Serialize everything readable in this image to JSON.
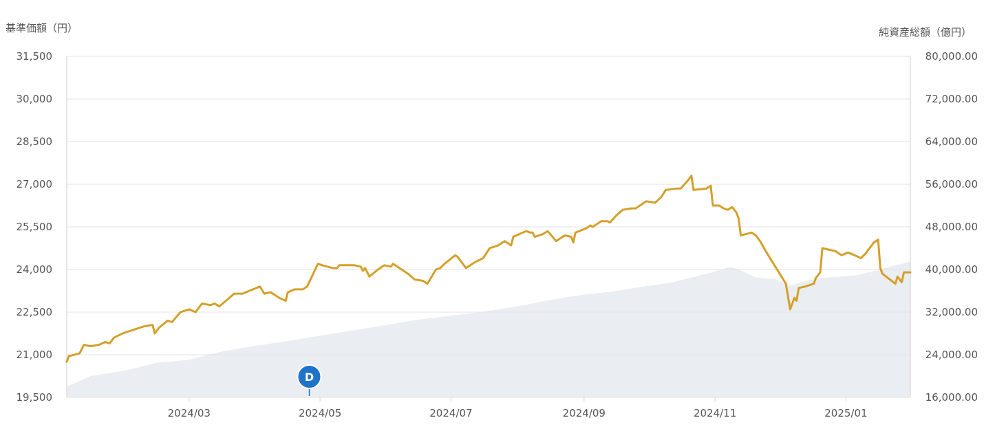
{
  "chart_data": {
    "type": "line",
    "left_axis_title": "基準価額（円）",
    "right_axis_title": "純資産総額（億円）",
    "left_ticks": [
      "19,500",
      "21,000",
      "22,500",
      "24,000",
      "25,500",
      "27,000",
      "28,500",
      "30,000",
      "31,500"
    ],
    "right_ticks": [
      "16,000.00",
      "24,000.00",
      "32,000.00",
      "40,000.00",
      "48,000.00",
      "56,000.00",
      "64,000.00",
      "72,000.00",
      "80,000.00"
    ],
    "x_ticks": [
      "2024/03",
      "2024/05",
      "2024/07",
      "2024/09",
      "2024/11",
      "2025/01"
    ],
    "left_range": [
      19500,
      31500
    ],
    "right_range": [
      16000,
      80000
    ],
    "x_range": [
      "2024-01-04",
      "2025-01-31"
    ],
    "marker": {
      "label": "D",
      "date": "2024-04-26"
    },
    "colors": {
      "price_line": "#d4a02a",
      "assets_area": "#eaedf2",
      "grid": "#e3e3e3",
      "marker": "#1f73c9",
      "axis_text": "#555555"
    },
    "series": [
      {
        "type": "line",
        "axis": "left",
        "points": [
          [
            "2024-01-04",
            20750
          ],
          [
            "2024-01-05",
            20950
          ],
          [
            "2024-01-10",
            21050
          ],
          [
            "2024-01-12",
            21350
          ],
          [
            "2024-01-15",
            21300
          ],
          [
            "2024-01-19",
            21350
          ],
          [
            "2024-01-22",
            21450
          ],
          [
            "2024-01-24",
            21400
          ],
          [
            "2024-01-26",
            21600
          ],
          [
            "2024-01-30",
            21750
          ],
          [
            "2024-02-05",
            21900
          ],
          [
            "2024-02-09",
            22000
          ],
          [
            "2024-02-13",
            22050
          ],
          [
            "2024-02-14",
            21750
          ],
          [
            "2024-02-16",
            21950
          ],
          [
            "2024-02-20",
            22200
          ],
          [
            "2024-02-22",
            22150
          ],
          [
            "2024-02-26",
            22500
          ],
          [
            "2024-03-01",
            22600
          ],
          [
            "2024-03-04",
            22500
          ],
          [
            "2024-03-07",
            22800
          ],
          [
            "2024-03-11",
            22750
          ],
          [
            "2024-03-13",
            22800
          ],
          [
            "2024-03-15",
            22700
          ],
          [
            "2024-03-19",
            22950
          ],
          [
            "2024-03-22",
            23150
          ],
          [
            "2024-03-26",
            23150
          ],
          [
            "2024-03-29",
            23250
          ],
          [
            "2024-04-03",
            23400
          ],
          [
            "2024-04-05",
            23150
          ],
          [
            "2024-04-08",
            23200
          ],
          [
            "2024-04-12",
            23000
          ],
          [
            "2024-04-15",
            22900
          ],
          [
            "2024-04-16",
            23200
          ],
          [
            "2024-04-19",
            23300
          ],
          [
            "2024-04-23",
            23300
          ],
          [
            "2024-04-25",
            23400
          ],
          [
            "2024-04-30",
            24200
          ],
          [
            "2024-05-02",
            24150
          ],
          [
            "2024-05-07",
            24050
          ],
          [
            "2024-05-09",
            24050
          ],
          [
            "2024-05-10",
            24150
          ],
          [
            "2024-05-14",
            24150
          ],
          [
            "2024-05-17",
            24150
          ],
          [
            "2024-05-20",
            24100
          ],
          [
            "2024-05-21",
            23950
          ],
          [
            "2024-05-22",
            24050
          ],
          [
            "2024-05-24",
            23750
          ],
          [
            "2024-05-28",
            24000
          ],
          [
            "2024-05-31",
            24150
          ],
          [
            "2024-06-03",
            24100
          ],
          [
            "2024-06-04",
            24200
          ],
          [
            "2024-06-07",
            24050
          ],
          [
            "2024-06-11",
            23850
          ],
          [
            "2024-06-14",
            23650
          ],
          [
            "2024-06-18",
            23600
          ],
          [
            "2024-06-20",
            23500
          ],
          [
            "2024-06-24",
            24000
          ],
          [
            "2024-06-26",
            24050
          ],
          [
            "2024-06-28",
            24200
          ],
          [
            "2024-07-03",
            24500
          ],
          [
            "2024-07-04",
            24450
          ],
          [
            "2024-07-08",
            24050
          ],
          [
            "2024-07-12",
            24250
          ],
          [
            "2024-07-16",
            24400
          ],
          [
            "2024-07-19",
            24750
          ],
          [
            "2024-07-23",
            24850
          ],
          [
            "2024-07-25",
            24950
          ],
          [
            "2024-07-26",
            25000
          ],
          [
            "2024-07-29",
            24850
          ],
          [
            "2024-07-30",
            25150
          ],
          [
            "2024-08-02",
            25250
          ],
          [
            "2024-08-05",
            25350
          ],
          [
            "2024-08-07",
            25300
          ],
          [
            "2024-08-08",
            25300
          ],
          [
            "2024-08-09",
            25150
          ],
          [
            "2024-08-13",
            25250
          ],
          [
            "2024-08-15",
            25350
          ],
          [
            "2024-08-19",
            25000
          ],
          [
            "2024-08-21",
            25100
          ],
          [
            "2024-08-23",
            25200
          ],
          [
            "2024-08-26",
            25150
          ],
          [
            "2024-08-27",
            24950
          ],
          [
            "2024-08-28",
            25300
          ],
          [
            "2024-09-02",
            25450
          ],
          [
            "2024-09-04",
            25550
          ],
          [
            "2024-09-05",
            25500
          ],
          [
            "2024-09-09",
            25700
          ],
          [
            "2024-09-12",
            25700
          ],
          [
            "2024-09-13",
            25650
          ],
          [
            "2024-09-16",
            25900
          ],
          [
            "2024-09-19",
            26100
          ],
          [
            "2024-09-23",
            26150
          ],
          [
            "2024-09-25",
            26150
          ],
          [
            "2024-09-27",
            26250
          ],
          [
            "2024-09-30",
            26400
          ],
          [
            "2024-10-04",
            26350
          ],
          [
            "2024-10-07",
            26550
          ],
          [
            "2024-10-09",
            26800
          ],
          [
            "2024-10-14",
            26850
          ],
          [
            "2024-10-16",
            26850
          ],
          [
            "2024-10-19",
            27100
          ],
          [
            "2024-10-21",
            27300
          ],
          [
            "2024-10-22",
            26800
          ],
          [
            "2024-10-28",
            26850
          ],
          [
            "2024-10-30",
            26950
          ],
          [
            "2024-10-31",
            26250
          ],
          [
            "2024-11-03",
            26250
          ],
          [
            "2024-11-05",
            26150
          ],
          [
            "2024-11-07",
            26100
          ],
          [
            "2024-11-09",
            26200
          ],
          [
            "2024-11-11",
            26000
          ],
          [
            "2024-11-12",
            25800
          ],
          [
            "2024-11-13",
            25200
          ],
          [
            "2024-11-18",
            25300
          ],
          [
            "2024-11-20",
            25200
          ],
          [
            "2024-11-22",
            25000
          ],
          [
            "2024-11-25",
            24600
          ],
          [
            "2024-12-04",
            23500
          ],
          [
            "2024-12-06",
            22600
          ],
          [
            "2024-12-08",
            23000
          ],
          [
            "2024-12-09",
            22900
          ],
          [
            "2024-12-10",
            23350
          ],
          [
            "2024-12-13",
            23400
          ],
          [
            "2024-12-17",
            23500
          ],
          [
            "2024-12-18",
            23700
          ],
          [
            "2024-12-20",
            23900
          ],
          [
            "2024-12-21",
            24750
          ],
          [
            "2024-12-24",
            24700
          ],
          [
            "2024-12-27",
            24650
          ],
          [
            "2024-12-30",
            24500
          ],
          [
            "2025-01-02",
            24600
          ],
          [
            "2025-01-05",
            24500
          ],
          [
            "2025-01-08",
            24400
          ],
          [
            "2025-01-10",
            24550
          ],
          [
            "2025-01-14",
            24950
          ],
          [
            "2025-01-16",
            25050
          ],
          [
            "2025-01-17",
            24050
          ],
          [
            "2025-01-18",
            23850
          ],
          [
            "2025-01-24",
            23500
          ],
          [
            "2025-01-25",
            23750
          ],
          [
            "2025-01-27",
            23550
          ],
          [
            "2025-01-28",
            23900
          ],
          [
            "2025-01-31",
            23900
          ]
        ]
      },
      {
        "type": "area",
        "axis": "right",
        "points": [
          [
            "2024-01-04",
            18000
          ],
          [
            "2024-01-15",
            20000
          ],
          [
            "2024-01-31",
            21000
          ],
          [
            "2024-02-15",
            22500
          ],
          [
            "2024-02-29",
            23000
          ],
          [
            "2024-03-15",
            24500
          ],
          [
            "2024-03-29",
            25500
          ],
          [
            "2024-04-15",
            26500
          ],
          [
            "2024-04-30",
            27500
          ],
          [
            "2024-05-15",
            28500
          ],
          [
            "2024-05-31",
            29500
          ],
          [
            "2024-06-14",
            30500
          ],
          [
            "2024-06-28",
            31200
          ],
          [
            "2024-07-15",
            32000
          ],
          [
            "2024-07-31",
            33000
          ],
          [
            "2024-08-15",
            34200
          ],
          [
            "2024-08-30",
            35200
          ],
          [
            "2024-09-13",
            35800
          ],
          [
            "2024-09-27",
            36700
          ],
          [
            "2024-10-11",
            37500
          ],
          [
            "2024-10-21",
            38500
          ],
          [
            "2024-10-31",
            39500
          ],
          [
            "2024-11-08",
            40500
          ],
          [
            "2024-11-12",
            40000
          ],
          [
            "2024-11-20",
            38500
          ],
          [
            "2024-11-29",
            38200
          ],
          [
            "2024-12-06",
            37000
          ],
          [
            "2024-12-13",
            37800
          ],
          [
            "2024-12-20",
            38400
          ],
          [
            "2024-12-27",
            38600
          ],
          [
            "2025-01-06",
            38900
          ],
          [
            "2025-01-15",
            39800
          ],
          [
            "2025-01-24",
            40800
          ],
          [
            "2025-01-31",
            41500
          ]
        ]
      }
    ]
  }
}
